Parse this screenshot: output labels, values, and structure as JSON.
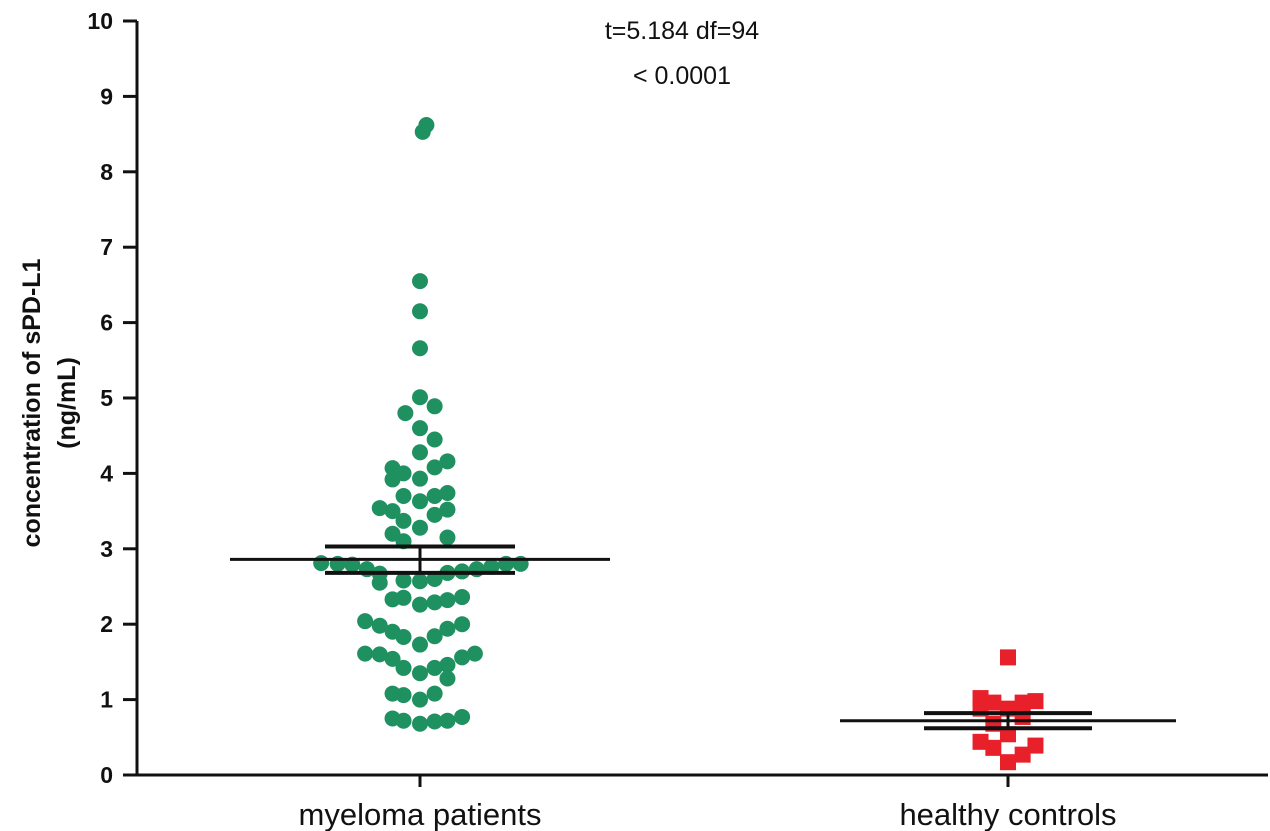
{
  "chart_data": {
    "type": "scatter",
    "ylabel_line1": "concentration of sPD-L1",
    "ylabel_line2": "(ng/mL)",
    "ylim": [
      0,
      10
    ],
    "yticks": [
      "0",
      "1",
      "2",
      "3",
      "4",
      "5",
      "6",
      "7",
      "8",
      "9",
      "10"
    ],
    "categories": [
      "myeloma patients",
      "healthy controls"
    ],
    "annotations": [
      "t=5.184 df=94",
      "< 0.0001"
    ],
    "colors": {
      "myeloma": "#1f9160",
      "controls": "#e8202a",
      "axis": "#111111"
    },
    "series": [
      {
        "category": "myeloma patients",
        "marker": "circle",
        "mean": 2.86,
        "sem_upper": 3.03,
        "sem_lower": 2.68,
        "points": [
          {
            "o": 0.15,
            "y": 8.53
          },
          {
            "o": 0.35,
            "y": 8.62
          },
          {
            "o": 0.0,
            "y": 6.55
          },
          {
            "o": 0.0,
            "y": 6.15
          },
          {
            "o": 0.0,
            "y": 5.66
          },
          {
            "o": 0.0,
            "y": 5.01
          },
          {
            "o": -0.8,
            "y": 4.8
          },
          {
            "o": 0.8,
            "y": 4.89
          },
          {
            "o": 0.0,
            "y": 4.6
          },
          {
            "o": 0.8,
            "y": 4.45
          },
          {
            "o": 0.0,
            "y": 4.28
          },
          {
            "o": -1.5,
            "y": 4.07
          },
          {
            "o": -0.9,
            "y": 4.0
          },
          {
            "o": 0.8,
            "y": 4.08
          },
          {
            "o": 1.5,
            "y": 4.16
          },
          {
            "o": -1.5,
            "y": 3.92
          },
          {
            "o": 0.0,
            "y": 3.93
          },
          {
            "o": -0.9,
            "y": 3.7
          },
          {
            "o": 0.0,
            "y": 3.63
          },
          {
            "o": 0.8,
            "y": 3.7
          },
          {
            "o": 1.5,
            "y": 3.74
          },
          {
            "o": -2.2,
            "y": 3.54
          },
          {
            "o": -1.5,
            "y": 3.5
          },
          {
            "o": 0.8,
            "y": 3.45
          },
          {
            "o": 1.5,
            "y": 3.52
          },
          {
            "o": -0.9,
            "y": 3.37
          },
          {
            "o": 0.0,
            "y": 3.28
          },
          {
            "o": -1.5,
            "y": 3.2
          },
          {
            "o": -0.9,
            "y": 3.1
          },
          {
            "o": 1.5,
            "y": 3.15
          },
          {
            "o": -5.4,
            "y": 2.81
          },
          {
            "o": -4.5,
            "y": 2.8
          },
          {
            "o": -3.7,
            "y": 2.79
          },
          {
            "o": -2.9,
            "y": 2.73
          },
          {
            "o": 3.1,
            "y": 2.73
          },
          {
            "o": 3.9,
            "y": 2.76
          },
          {
            "o": 4.7,
            "y": 2.8
          },
          {
            "o": 5.5,
            "y": 2.8
          },
          {
            "o": -2.2,
            "y": 2.67
          },
          {
            "o": 1.5,
            "y": 2.68
          },
          {
            "o": 2.3,
            "y": 2.7
          },
          {
            "o": -2.2,
            "y": 2.55
          },
          {
            "o": -0.9,
            "y": 2.58
          },
          {
            "o": 0.0,
            "y": 2.57
          },
          {
            "o": 0.8,
            "y": 2.6
          },
          {
            "o": -0.9,
            "y": 2.35
          },
          {
            "o": 0.0,
            "y": 2.26
          },
          {
            "o": 0.8,
            "y": 2.29
          },
          {
            "o": 1.5,
            "y": 2.32
          },
          {
            "o": -1.5,
            "y": 2.33
          },
          {
            "o": 2.3,
            "y": 2.36
          },
          {
            "o": -3.0,
            "y": 2.04
          },
          {
            "o": -2.2,
            "y": 1.98
          },
          {
            "o": 2.3,
            "y": 2.0
          },
          {
            "o": -1.5,
            "y": 1.9
          },
          {
            "o": -0.9,
            "y": 1.83
          },
          {
            "o": 0.0,
            "y": 1.73
          },
          {
            "o": 0.8,
            "y": 1.84
          },
          {
            "o": 1.5,
            "y": 1.94
          },
          {
            "o": -3.0,
            "y": 1.61
          },
          {
            "o": -2.2,
            "y": 1.6
          },
          {
            "o": -1.5,
            "y": 1.54
          },
          {
            "o": 2.3,
            "y": 1.56
          },
          {
            "o": 3.0,
            "y": 1.61
          },
          {
            "o": -0.9,
            "y": 1.42
          },
          {
            "o": 0.0,
            "y": 1.35
          },
          {
            "o": 0.8,
            "y": 1.42
          },
          {
            "o": 1.5,
            "y": 1.46
          },
          {
            "o": 1.5,
            "y": 1.28
          },
          {
            "o": -1.5,
            "y": 1.08
          },
          {
            "o": -0.9,
            "y": 1.06
          },
          {
            "o": 0.0,
            "y": 1.0
          },
          {
            "o": 0.8,
            "y": 1.08
          },
          {
            "o": -1.5,
            "y": 0.75
          },
          {
            "o": -0.9,
            "y": 0.72
          },
          {
            "o": 0.0,
            "y": 0.68
          },
          {
            "o": 0.8,
            "y": 0.71
          },
          {
            "o": 1.5,
            "y": 0.72
          },
          {
            "o": 2.3,
            "y": 0.77
          }
        ]
      },
      {
        "category": "healthy controls",
        "marker": "square",
        "mean": 0.72,
        "sem_upper": 0.82,
        "sem_lower": 0.62,
        "points": [
          {
            "o": 0.0,
            "y": 1.56
          },
          {
            "o": -1.5,
            "y": 1.02
          },
          {
            "o": -0.8,
            "y": 0.96
          },
          {
            "o": 0.8,
            "y": 0.96
          },
          {
            "o": 1.5,
            "y": 0.98
          },
          {
            "o": -1.5,
            "y": 0.88
          },
          {
            "o": 0.0,
            "y": 0.88
          },
          {
            "o": 0.8,
            "y": 0.77
          },
          {
            "o": -0.8,
            "y": 0.68
          },
          {
            "o": 0.0,
            "y": 0.54
          },
          {
            "o": -1.5,
            "y": 0.44
          },
          {
            "o": -0.8,
            "y": 0.36
          },
          {
            "o": 1.5,
            "y": 0.39
          },
          {
            "o": 0.8,
            "y": 0.27
          },
          {
            "o": 0.0,
            "y": 0.17
          }
        ]
      }
    ]
  }
}
